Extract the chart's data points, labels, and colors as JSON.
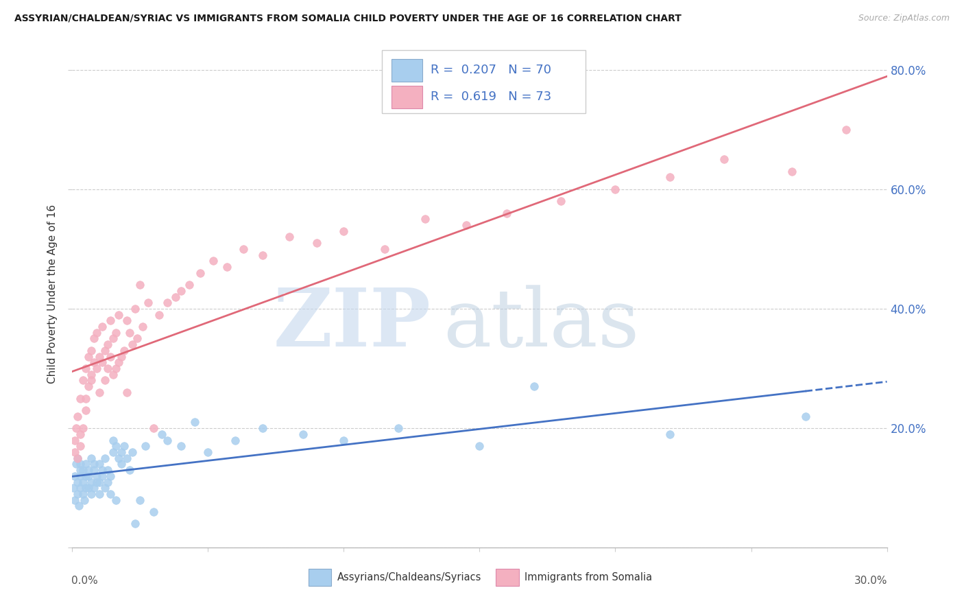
{
  "title": "ASSYRIAN/CHALDEAN/SYRIAC VS IMMIGRANTS FROM SOMALIA CHILD POVERTY UNDER THE AGE OF 16 CORRELATION CHART",
  "source": "Source: ZipAtlas.com",
  "ylabel": "Child Poverty Under the Age of 16",
  "xlim": [
    0.0,
    0.3
  ],
  "ylim": [
    0.0,
    0.85
  ],
  "yticks": [
    0.0,
    0.2,
    0.4,
    0.6,
    0.8
  ],
  "ytick_labels": [
    "",
    "20.0%",
    "40.0%",
    "60.0%",
    "80.0%"
  ],
  "xtick_left_label": "0.0%",
  "xtick_right_label": "30.0%",
  "legend_blue_r": "0.207",
  "legend_blue_n": "70",
  "legend_pink_r": "0.619",
  "legend_pink_n": "73",
  "blue_color": "#A8CEEE",
  "pink_color": "#F4B0C0",
  "trend_blue_color": "#4472C4",
  "trend_pink_color": "#E06878",
  "legend_label_blue": "Assyrians/Chaldeans/Syriacs",
  "legend_label_pink": "Immigrants from Somalia",
  "blue_scatter_x": [
    0.0005,
    0.001,
    0.001,
    0.0015,
    0.002,
    0.002,
    0.002,
    0.0025,
    0.003,
    0.003,
    0.003,
    0.003,
    0.004,
    0.004,
    0.004,
    0.0045,
    0.005,
    0.005,
    0.005,
    0.006,
    0.006,
    0.006,
    0.007,
    0.007,
    0.007,
    0.008,
    0.008,
    0.008,
    0.009,
    0.009,
    0.01,
    0.01,
    0.01,
    0.011,
    0.011,
    0.012,
    0.012,
    0.013,
    0.013,
    0.014,
    0.014,
    0.015,
    0.015,
    0.016,
    0.016,
    0.017,
    0.018,
    0.018,
    0.019,
    0.02,
    0.021,
    0.022,
    0.023,
    0.025,
    0.027,
    0.03,
    0.033,
    0.035,
    0.04,
    0.045,
    0.05,
    0.06,
    0.07,
    0.085,
    0.1,
    0.12,
    0.15,
    0.17,
    0.22,
    0.27
  ],
  "blue_scatter_y": [
    0.1,
    0.12,
    0.08,
    0.14,
    0.09,
    0.11,
    0.15,
    0.07,
    0.13,
    0.1,
    0.12,
    0.14,
    0.09,
    0.11,
    0.13,
    0.08,
    0.14,
    0.1,
    0.12,
    0.13,
    0.1,
    0.12,
    0.15,
    0.09,
    0.11,
    0.14,
    0.13,
    0.1,
    0.12,
    0.11,
    0.14,
    0.09,
    0.11,
    0.13,
    0.12,
    0.1,
    0.15,
    0.11,
    0.13,
    0.09,
    0.12,
    0.16,
    0.18,
    0.17,
    0.08,
    0.15,
    0.16,
    0.14,
    0.17,
    0.15,
    0.13,
    0.16,
    0.04,
    0.08,
    0.17,
    0.06,
    0.19,
    0.18,
    0.17,
    0.21,
    0.16,
    0.18,
    0.2,
    0.19,
    0.18,
    0.2,
    0.17,
    0.27,
    0.19,
    0.22
  ],
  "pink_scatter_x": [
    0.001,
    0.001,
    0.0015,
    0.002,
    0.002,
    0.003,
    0.003,
    0.003,
    0.004,
    0.004,
    0.005,
    0.005,
    0.005,
    0.006,
    0.006,
    0.007,
    0.007,
    0.007,
    0.008,
    0.008,
    0.009,
    0.009,
    0.01,
    0.01,
    0.011,
    0.011,
    0.012,
    0.012,
    0.013,
    0.013,
    0.014,
    0.014,
    0.015,
    0.015,
    0.016,
    0.016,
    0.017,
    0.017,
    0.018,
    0.019,
    0.02,
    0.02,
    0.021,
    0.022,
    0.023,
    0.024,
    0.025,
    0.026,
    0.028,
    0.03,
    0.032,
    0.035,
    0.038,
    0.04,
    0.043,
    0.047,
    0.052,
    0.057,
    0.063,
    0.07,
    0.08,
    0.09,
    0.1,
    0.115,
    0.13,
    0.145,
    0.16,
    0.18,
    0.2,
    0.22,
    0.24,
    0.265,
    0.285
  ],
  "pink_scatter_y": [
    0.16,
    0.18,
    0.2,
    0.15,
    0.22,
    0.17,
    0.25,
    0.19,
    0.28,
    0.2,
    0.3,
    0.23,
    0.25,
    0.32,
    0.27,
    0.33,
    0.29,
    0.28,
    0.35,
    0.31,
    0.3,
    0.36,
    0.32,
    0.26,
    0.31,
    0.37,
    0.33,
    0.28,
    0.34,
    0.3,
    0.32,
    0.38,
    0.29,
    0.35,
    0.3,
    0.36,
    0.31,
    0.39,
    0.32,
    0.33,
    0.38,
    0.26,
    0.36,
    0.34,
    0.4,
    0.35,
    0.44,
    0.37,
    0.41,
    0.2,
    0.39,
    0.41,
    0.42,
    0.43,
    0.44,
    0.46,
    0.48,
    0.47,
    0.5,
    0.49,
    0.52,
    0.51,
    0.53,
    0.5,
    0.55,
    0.54,
    0.56,
    0.58,
    0.6,
    0.62,
    0.65,
    0.63,
    0.7
  ]
}
